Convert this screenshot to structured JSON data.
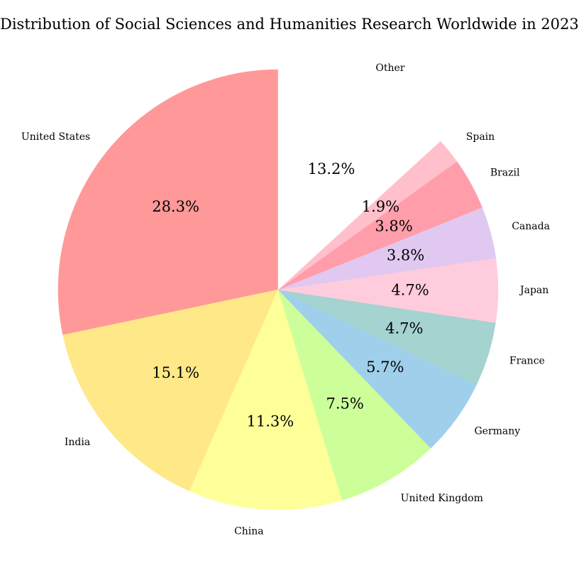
{
  "chart_data": {
    "type": "pie",
    "title": "Distribution of Social Sciences and Humanities Research Worldwide in 2023",
    "categories": [
      "United States",
      "India",
      "China",
      "United Kingdom",
      "Germany",
      "France",
      "Japan",
      "Canada",
      "Brazil",
      "Spain",
      "Other"
    ],
    "values": [
      28.3,
      15.1,
      11.3,
      7.5,
      5.7,
      4.7,
      4.7,
      3.8,
      3.8,
      1.9,
      13.2
    ],
    "value_labels": [
      "28.3%",
      "15.1%",
      "11.3%",
      "7.5%",
      "5.7%",
      "4.7%",
      "4.7%",
      "3.8%",
      "3.8%",
      "1.9%",
      "13.2%"
    ],
    "colors": [
      "#FF9999",
      "#FFE888",
      "#FFFF99",
      "#CCFF99",
      "#A0CFEC",
      "#A4D3D0",
      "#FFCCDD",
      "#E0C8F0",
      "#FF9EAA",
      "#FFC0CB",
      "#FFFFFF"
    ],
    "start_angle_deg": 90,
    "direction": "counterclockwise",
    "legend": "none"
  }
}
